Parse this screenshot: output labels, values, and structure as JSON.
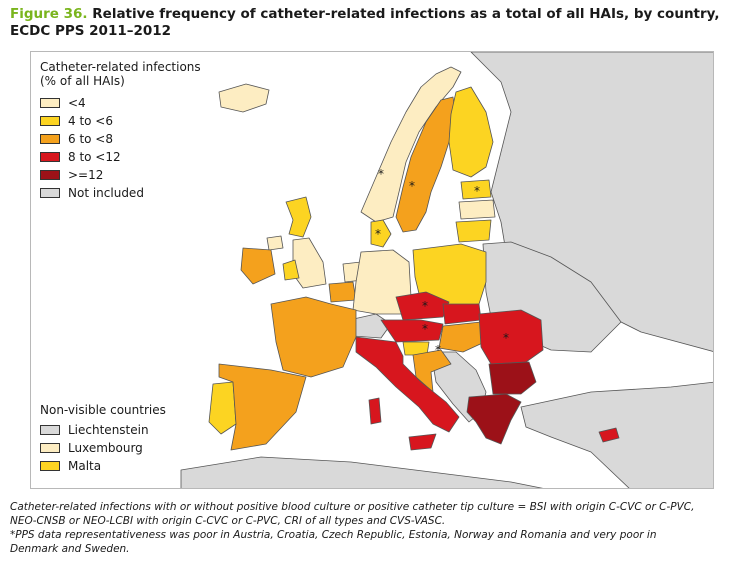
{
  "title": {
    "figure_label": "Figure 36.",
    "text": "Relative frequency of catheter-related infections as a total of all HAIs, by country, ECDC PPS 2011–2012"
  },
  "colors": {
    "lt4": "#fdedc2",
    "4to6": "#fcd422",
    "6to8": "#f4a11d",
    "8to12": "#d7161e",
    "ge12": "#9c1118",
    "not_included": "#d9d9d9",
    "non_eu": "#d9d9d9",
    "sea": "#ffffff",
    "border": "#555555"
  },
  "legend": {
    "title_line1": "Catheter-related infections",
    "title_line2": "(% of all HAIs)",
    "items": [
      {
        "label": "<4",
        "color_key": "lt4"
      },
      {
        "label": "4 to <6",
        "color_key": "4to6"
      },
      {
        "label": "6 to <8",
        "color_key": "6to8"
      },
      {
        "label": "8 to <12",
        "color_key": "8to12"
      },
      {
        "label": ">=12",
        "color_key": "ge12"
      },
      {
        "label": "Not included",
        "color_key": "not_included"
      }
    ]
  },
  "non_visible": {
    "title": "Non-visible countries",
    "items": [
      {
        "label": "Liechtenstein",
        "color_key": "not_included"
      },
      {
        "label": "Luxembourg",
        "color_key": "lt4"
      },
      {
        "label": "Malta",
        "color_key": "4to6"
      }
    ]
  },
  "countries": [
    {
      "name": "Iceland",
      "category": "lt4"
    },
    {
      "name": "Norway",
      "category": "lt4",
      "asterisk": true
    },
    {
      "name": "Sweden",
      "category": "6to8",
      "asterisk": true
    },
    {
      "name": "Finland",
      "category": "4to6"
    },
    {
      "name": "Estonia",
      "category": "4to6",
      "asterisk": true
    },
    {
      "name": "Latvia",
      "category": "lt4"
    },
    {
      "name": "Lithuania",
      "category": "4to6"
    },
    {
      "name": "Denmark",
      "category": "4to6",
      "asterisk": true
    },
    {
      "name": "United Kingdom – Scotland",
      "category": "4to6"
    },
    {
      "name": "United Kingdom – England",
      "category": "lt4"
    },
    {
      "name": "United Kingdom – Wales",
      "category": "4to6"
    },
    {
      "name": "United Kingdom – Northern Ireland",
      "category": "lt4"
    },
    {
      "name": "Ireland",
      "category": "6to8"
    },
    {
      "name": "Netherlands",
      "category": "lt4"
    },
    {
      "name": "Belgium",
      "category": "6to8"
    },
    {
      "name": "Germany",
      "category": "lt4"
    },
    {
      "name": "Poland",
      "category": "4to6"
    },
    {
      "name": "France",
      "category": "6to8"
    },
    {
      "name": "Portugal",
      "category": "4to6"
    },
    {
      "name": "Spain",
      "category": "6to8"
    },
    {
      "name": "Czech Republic",
      "category": "8to12",
      "asterisk": true
    },
    {
      "name": "Slovakia",
      "category": "8to12"
    },
    {
      "name": "Austria",
      "category": "8to12",
      "asterisk": true
    },
    {
      "name": "Hungary",
      "category": "6to8"
    },
    {
      "name": "Slovenia",
      "category": "4to6"
    },
    {
      "name": "Croatia",
      "category": "6to8",
      "asterisk": true
    },
    {
      "name": "Italy",
      "category": "8to12"
    },
    {
      "name": "Romania",
      "category": "8to12",
      "asterisk": true
    },
    {
      "name": "Bulgaria",
      "category": "ge12"
    },
    {
      "name": "Greece",
      "category": "ge12"
    },
    {
      "name": "Cyprus",
      "category": "8to12"
    },
    {
      "name": "Switzerland",
      "category": "not_included"
    },
    {
      "name": "Liechtenstein",
      "category": "not_included"
    },
    {
      "name": "Luxembourg",
      "category": "lt4"
    },
    {
      "name": "Malta",
      "category": "4to6"
    }
  ],
  "footnote": {
    "line1": "Catheter-related infections with or without positive blood culture or positive catheter tip culture = BSI with origin C-CVC or C-PVC,",
    "line2": "NEO-CNSB or NEO-LCBI with origin C-CVC or C-PVC, CRI of all types and CVS-VASC.",
    "line3": "*PPS data representativeness was poor in Austria, Croatia, Czech Republic, Estonia, Norway and Romania and very poor in",
    "line4": "Denmark and Sweden."
  }
}
